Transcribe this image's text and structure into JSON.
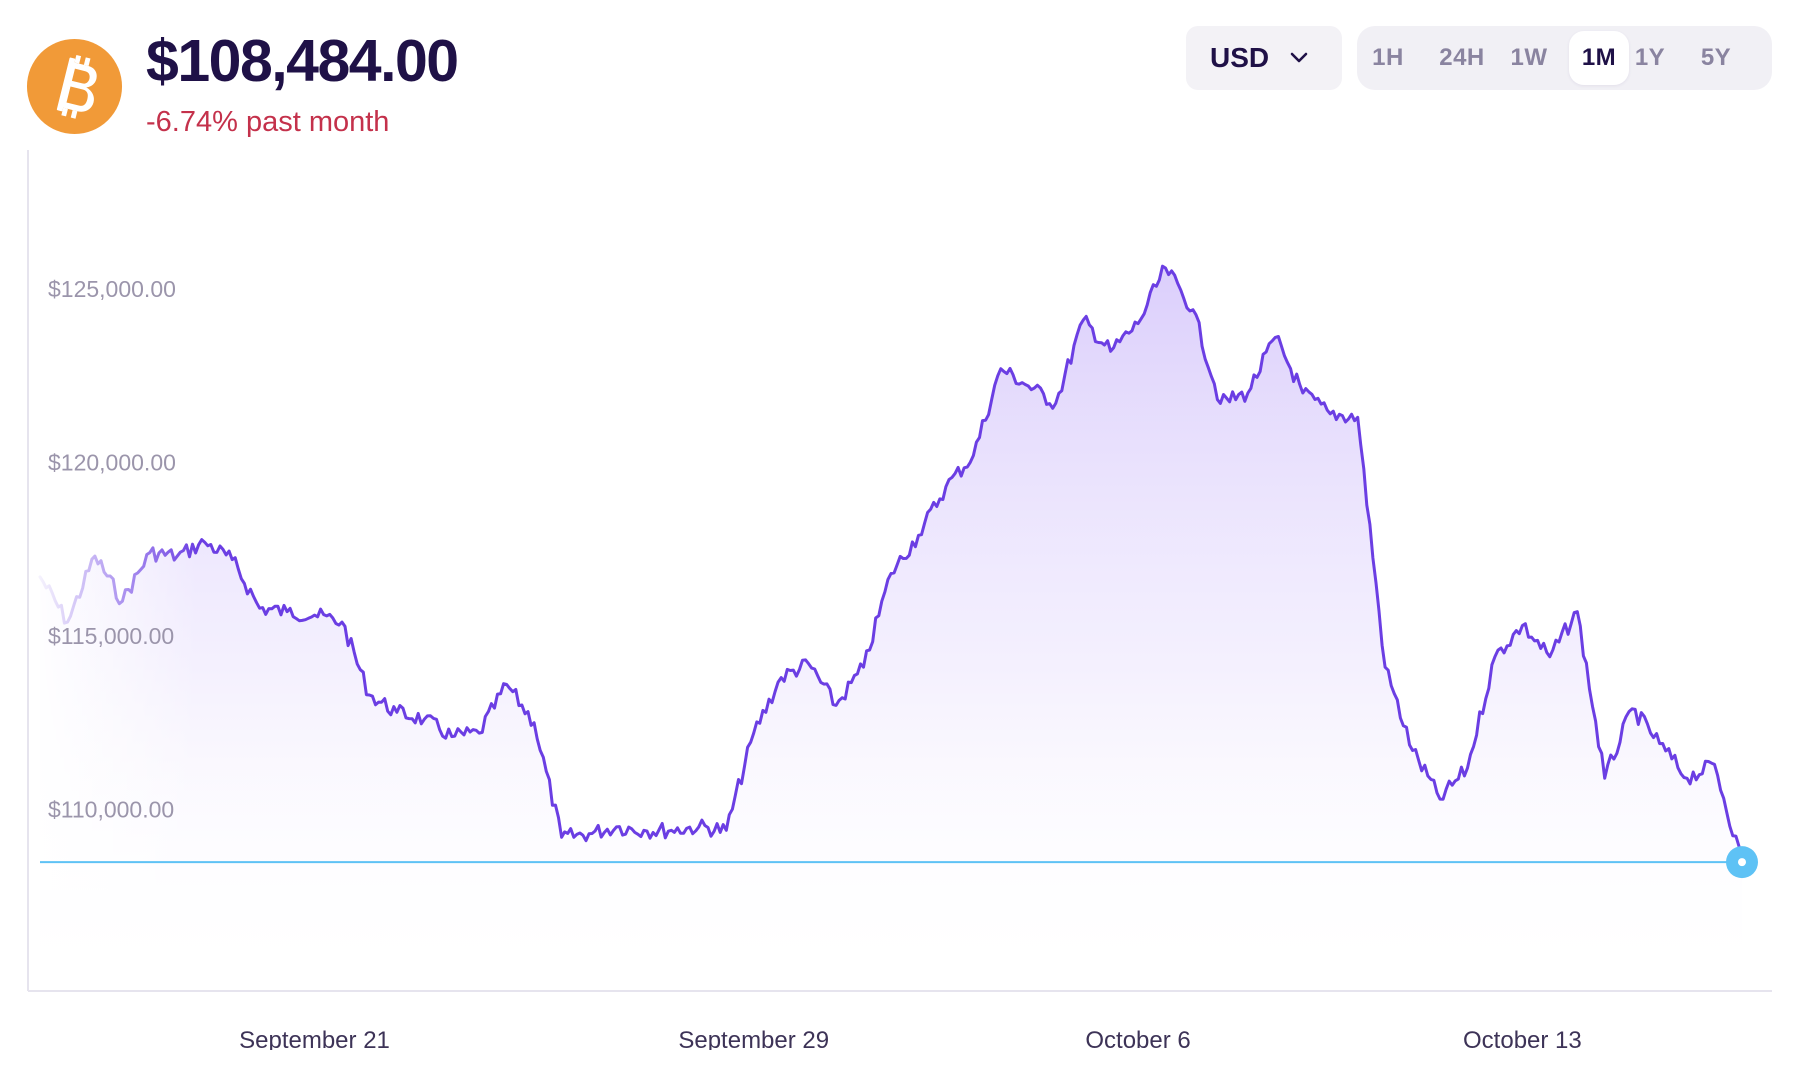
{
  "header": {
    "coin_icon": "bitcoin-icon",
    "price": "$108,484.00",
    "change": "-6.74% past month",
    "change_color": "#c4314b"
  },
  "controls": {
    "currency": "USD",
    "ranges": [
      "1H",
      "24H",
      "1W",
      "1M",
      "1Y",
      "5Y"
    ],
    "active_range": "1M"
  },
  "colors": {
    "line": "#6b3ee3",
    "fill_top": "#d9ccfb",
    "current_marker": "#5ec2f5",
    "axis_label": "#9b95ab",
    "date_label": "#3d3357",
    "bitcoin": "#f19a38"
  },
  "chart_data": {
    "type": "area",
    "title": "",
    "xlabel": "",
    "ylabel": "",
    "x_range": [
      "2025-09-16",
      "2025-10-17"
    ],
    "ylim": [
      104800,
      129000
    ],
    "yticks": [
      110000,
      115000,
      120000,
      125000
    ],
    "ytick_labels": [
      "$110,000.00",
      "$115,000.00",
      "$120,000.00",
      "$125,000.00"
    ],
    "xticks": [
      "2025-09-21",
      "2025-09-29",
      "2025-10-06",
      "2025-10-13"
    ],
    "xtick_labels": [
      "September 21",
      "September 29",
      "October 6",
      "October 13"
    ],
    "grid": false,
    "current_value": 108484,
    "series": [
      {
        "points": [
          [
            "2025-09-16T00:00",
            116700
          ],
          [
            "2025-09-16T12:00",
            115400
          ],
          [
            "2025-09-17T00:00",
            117300
          ],
          [
            "2025-09-17T12:00",
            116000
          ],
          [
            "2025-09-18T00:00",
            117400
          ],
          [
            "2025-09-18T12:00",
            117300
          ],
          [
            "2025-09-19T00:00",
            117700
          ],
          [
            "2025-09-19T12:00",
            117200
          ],
          [
            "2025-09-20T00:00",
            115800
          ],
          [
            "2025-09-20T12:00",
            115700
          ],
          [
            "2025-09-21T00:00",
            115600
          ],
          [
            "2025-09-21T12:00",
            115400
          ],
          [
            "2025-09-22T00:00",
            113300
          ],
          [
            "2025-09-22T12:00",
            112800
          ],
          [
            "2025-09-23T00:00",
            112600
          ],
          [
            "2025-09-23T12:00",
            112100
          ],
          [
            "2025-09-24T00:00",
            112200
          ],
          [
            "2025-09-24T12:00",
            113600
          ],
          [
            "2025-09-25T00:00",
            112500
          ],
          [
            "2025-09-25T12:00",
            109200
          ],
          [
            "2025-09-26T00:00",
            109300
          ],
          [
            "2025-09-26T12:00",
            109500
          ],
          [
            "2025-09-27T00:00",
            109400
          ],
          [
            "2025-09-27T12:00",
            109400
          ],
          [
            "2025-09-28T00:00",
            109500
          ],
          [
            "2025-09-28T12:00",
            109400
          ],
          [
            "2025-09-29T00:00",
            112200
          ],
          [
            "2025-09-29T12:00",
            113800
          ],
          [
            "2025-09-30T00:00",
            114200
          ],
          [
            "2025-09-30T12:00",
            113000
          ],
          [
            "2025-10-01T00:00",
            114100
          ],
          [
            "2025-10-01T12:00",
            116800
          ],
          [
            "2025-10-02T00:00",
            117900
          ],
          [
            "2025-10-02T12:00",
            119300
          ],
          [
            "2025-10-03T00:00",
            120200
          ],
          [
            "2025-10-03T12:00",
            122700
          ],
          [
            "2025-10-04T00:00",
            122200
          ],
          [
            "2025-10-04T12:00",
            121700
          ],
          [
            "2025-10-05T00:00",
            124100
          ],
          [
            "2025-10-05T12:00",
            123200
          ],
          [
            "2025-10-06T00:00",
            124000
          ],
          [
            "2025-10-06T12:00",
            125600
          ],
          [
            "2025-10-07T00:00",
            124400
          ],
          [
            "2025-10-07T12:00",
            121700
          ],
          [
            "2025-10-08T00:00",
            122000
          ],
          [
            "2025-10-08T12:00",
            123600
          ],
          [
            "2025-10-09T00:00",
            122000
          ],
          [
            "2025-10-09T12:00",
            121400
          ],
          [
            "2025-10-10T00:00",
            121300
          ],
          [
            "2025-10-10T12:00",
            114100
          ],
          [
            "2025-10-11T00:00",
            111700
          ],
          [
            "2025-10-11T12:00",
            110300
          ],
          [
            "2025-10-12T00:00",
            111200
          ],
          [
            "2025-10-12T12:00",
            114400
          ],
          [
            "2025-10-13T00:00",
            115300
          ],
          [
            "2025-10-13T12:00",
            114400
          ],
          [
            "2025-10-14T00:00",
            115700
          ],
          [
            "2025-10-14T12:00",
            110900
          ],
          [
            "2025-10-15T00:00",
            112900
          ],
          [
            "2025-10-15T12:00",
            111900
          ],
          [
            "2025-10-16T00:00",
            110900
          ],
          [
            "2025-10-16T12:00",
            111300
          ],
          [
            "2025-10-17T00:00",
            108484
          ]
        ]
      }
    ]
  }
}
